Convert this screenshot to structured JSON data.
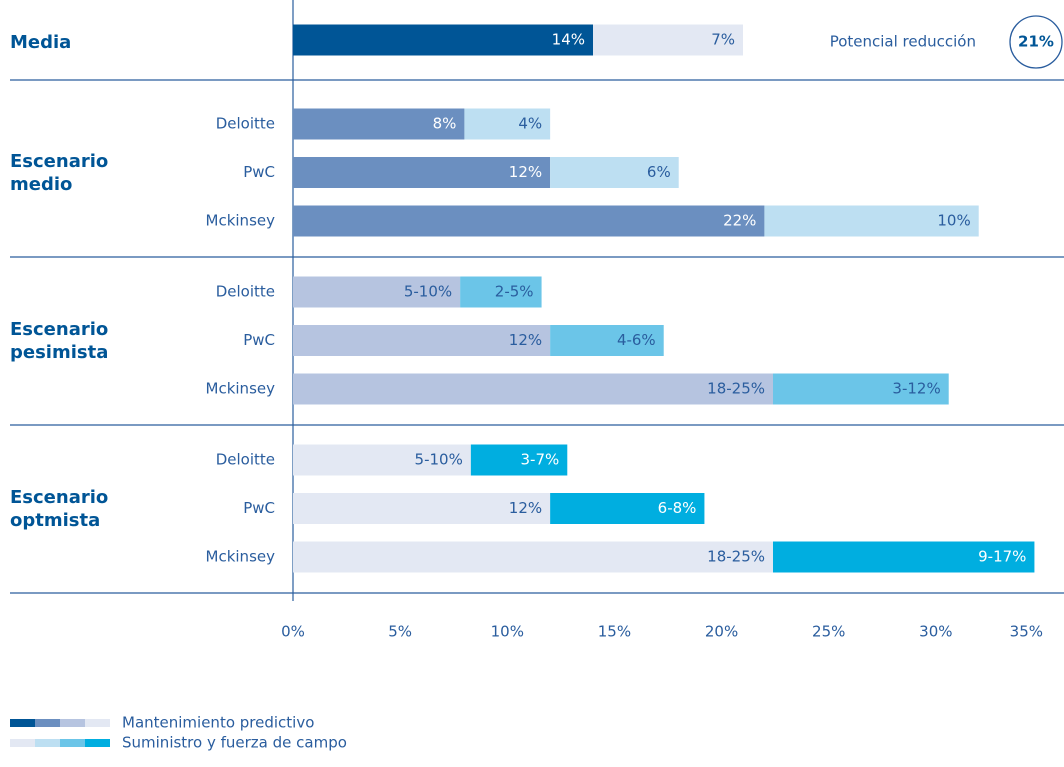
{
  "chart_data": {
    "type": "bar",
    "orientation": "horizontal",
    "stacked": true,
    "xlim": [
      0,
      35
    ],
    "xticks": [
      {
        "value": 0,
        "label": "0%"
      },
      {
        "value": 5,
        "label": "5%"
      },
      {
        "value": 10,
        "label": "10%"
      },
      {
        "value": 15,
        "label": "15%"
      },
      {
        "value": 20,
        "label": "20%"
      },
      {
        "value": 25,
        "label": "25%"
      },
      {
        "value": 30,
        "label": "30%"
      },
      {
        "value": 35,
        "label": "35%"
      }
    ],
    "series": [
      {
        "name": "Mantenimiento predictivo",
        "colors": [
          "#005596",
          "#6b8fc0",
          "#b6c4e0",
          "#e3e8f3"
        ]
      },
      {
        "name": "Suministro y fuerza de campo",
        "colors": [
          "#e3e8f3",
          "#bddff2",
          "#6bc5e8",
          "#00aee0"
        ]
      }
    ],
    "groups": [
      {
        "name": "Media",
        "rows": [
          {
            "category": null,
            "values": [
              14,
              7
            ],
            "value_labels": [
              "14%",
              "7%"
            ]
          }
        ]
      },
      {
        "name": "Escenario medio",
        "rows": [
          {
            "category": "Deloitte",
            "values": [
              8,
              4
            ],
            "value_labels": [
              "8%",
              "4%"
            ]
          },
          {
            "category": "PwC",
            "values": [
              12,
              6
            ],
            "value_labels": [
              "12%",
              "6%"
            ]
          },
          {
            "category": "Mckinsey",
            "values": [
              22,
              10
            ],
            "value_labels": [
              "22%",
              "10%"
            ]
          }
        ]
      },
      {
        "name": "Escenario pesimista",
        "rows": [
          {
            "category": "Deloitte",
            "values": [
              7.8,
              3.8
            ],
            "value_labels": [
              "5-10%",
              "2-5%"
            ]
          },
          {
            "category": "PwC",
            "values": [
              12,
              5.3
            ],
            "value_labels": [
              "12%",
              "4-6%"
            ]
          },
          {
            "category": "Mckinsey",
            "values": [
              22.4,
              8.2
            ],
            "value_labels": [
              "18-25%",
              "3-12%"
            ]
          }
        ]
      },
      {
        "name": "Escenario optmista",
        "rows": [
          {
            "category": "Deloitte",
            "values": [
              8.3,
              4.5
            ],
            "value_labels": [
              "5-10%",
              "3-7%"
            ]
          },
          {
            "category": "PwC",
            "values": [
              12,
              7.2
            ],
            "value_labels": [
              "12%",
              "6-8%"
            ]
          },
          {
            "category": "Mckinsey",
            "values": [
              22.4,
              12.2
            ],
            "value_labels": [
              "18-25%",
              "9-17%"
            ]
          }
        ]
      }
    ],
    "total": {
      "text": "Potencial reducción",
      "value": 21,
      "label": "21%"
    }
  }
}
